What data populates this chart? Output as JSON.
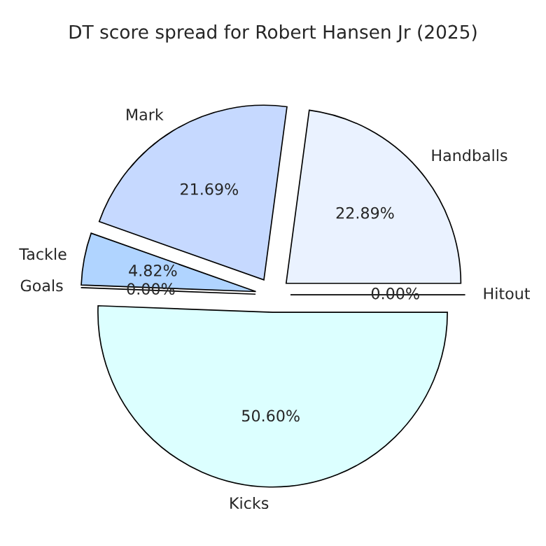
{
  "chart_data": {
    "type": "pie",
    "title": "DT score spread for Robert Hansen Jr (2025)",
    "categories": [
      "Handballs",
      "Mark",
      "Tackle",
      "Goals",
      "Kicks",
      "Hitout"
    ],
    "values": [
      22.89,
      21.69,
      4.82,
      0.0,
      50.6,
      0.0
    ],
    "value_labels": [
      "22.89%",
      "21.69%",
      "4.82%",
      "0.00%",
      "50.60%",
      "0.00%"
    ],
    "colors": [
      "#eaf2ff",
      "#c6d9ff",
      "#b0d4ff",
      "#a6c8ff",
      "#dcffff",
      "#e0ecff"
    ],
    "legend": false
  }
}
